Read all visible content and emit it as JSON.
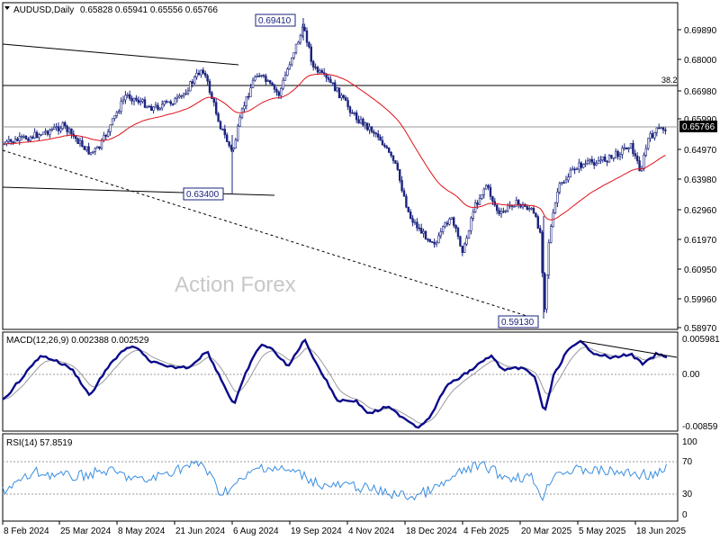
{
  "header": {
    "symbol_label": "AUDUSD,Daily",
    "ohlc_values": "0.65828 0.65941 0.65556 0.65766"
  },
  "watermark": "Action Forex",
  "colors": {
    "candles": "#1a237e",
    "ma_line": "#e0101a",
    "macd_line": "#0a0a8a",
    "signal_line": "#9a9a9a",
    "rsi_line": "#3a8ee0",
    "grid": "#000000"
  },
  "price_panel": {
    "y_ticks": [
      "0.69890",
      "0.68000",
      "0.66980",
      "0.65990",
      "0.64970",
      "0.63980",
      "0.62960",
      "0.61970",
      "0.60950",
      "0.59960",
      "0.58970"
    ],
    "current_price_label": "0.65766",
    "fib_label": "38.2",
    "callouts": [
      {
        "text": "0.69410"
      },
      {
        "text": "0.63400"
      },
      {
        "text": "0.59130"
      }
    ]
  },
  "macd_panel": {
    "label": "MACD(12,26,9) 0.002388 0.002529",
    "y_ticks": [
      "0.005981",
      "0.00",
      "-0.00859"
    ]
  },
  "rsi_panel": {
    "label": "RSI(14) 57.8519",
    "y_ticks": [
      "100",
      "70",
      "30",
      "0"
    ]
  },
  "x_axis": {
    "dates": [
      "8 Feb 2024",
      "25 Mar 2024",
      "8 May 2024",
      "21 Jun 2024",
      "6 Aug 2024",
      "19 Sep 2024",
      "4 Nov 2024",
      "18 Dec 2024",
      "4 Feb 2025",
      "20 Mar 2025",
      "5 May 2025",
      "18 Jun 2025"
    ]
  },
  "chart_data": {
    "type": "candlestick",
    "title": "AUDUSD,Daily",
    "y_range": [
      0.5897,
      0.7023
    ],
    "last": {
      "open": 0.65828,
      "high": 0.65941,
      "low": 0.65556,
      "close": 0.65766
    },
    "price_path": {
      "x": [
        "8 Feb 2024",
        "25 Mar 2024",
        "8 May 2024",
        "21 Jun 2024",
        "6 Aug 2024",
        "19 Sep 2024",
        "4 Nov 2024",
        "18 Dec 2024",
        "4 Feb 2025",
        "20 Mar 2025",
        "5 May 2025",
        "18 Jun 2025"
      ],
      "close": [
        0.654,
        0.6535,
        0.661,
        0.67,
        0.66,
        0.686,
        0.662,
        0.622,
        0.627,
        0.63,
        0.642,
        0.6577
      ]
    },
    "annotations": [
      "0.69410",
      "0.63400",
      "0.59130",
      "38.2"
    ],
    "indicators": {
      "macd": {
        "params": "12,26,9",
        "macd": 0.002388,
        "signal": 0.002529
      },
      "rsi": {
        "period": 14,
        "value": 57.8519
      }
    }
  }
}
